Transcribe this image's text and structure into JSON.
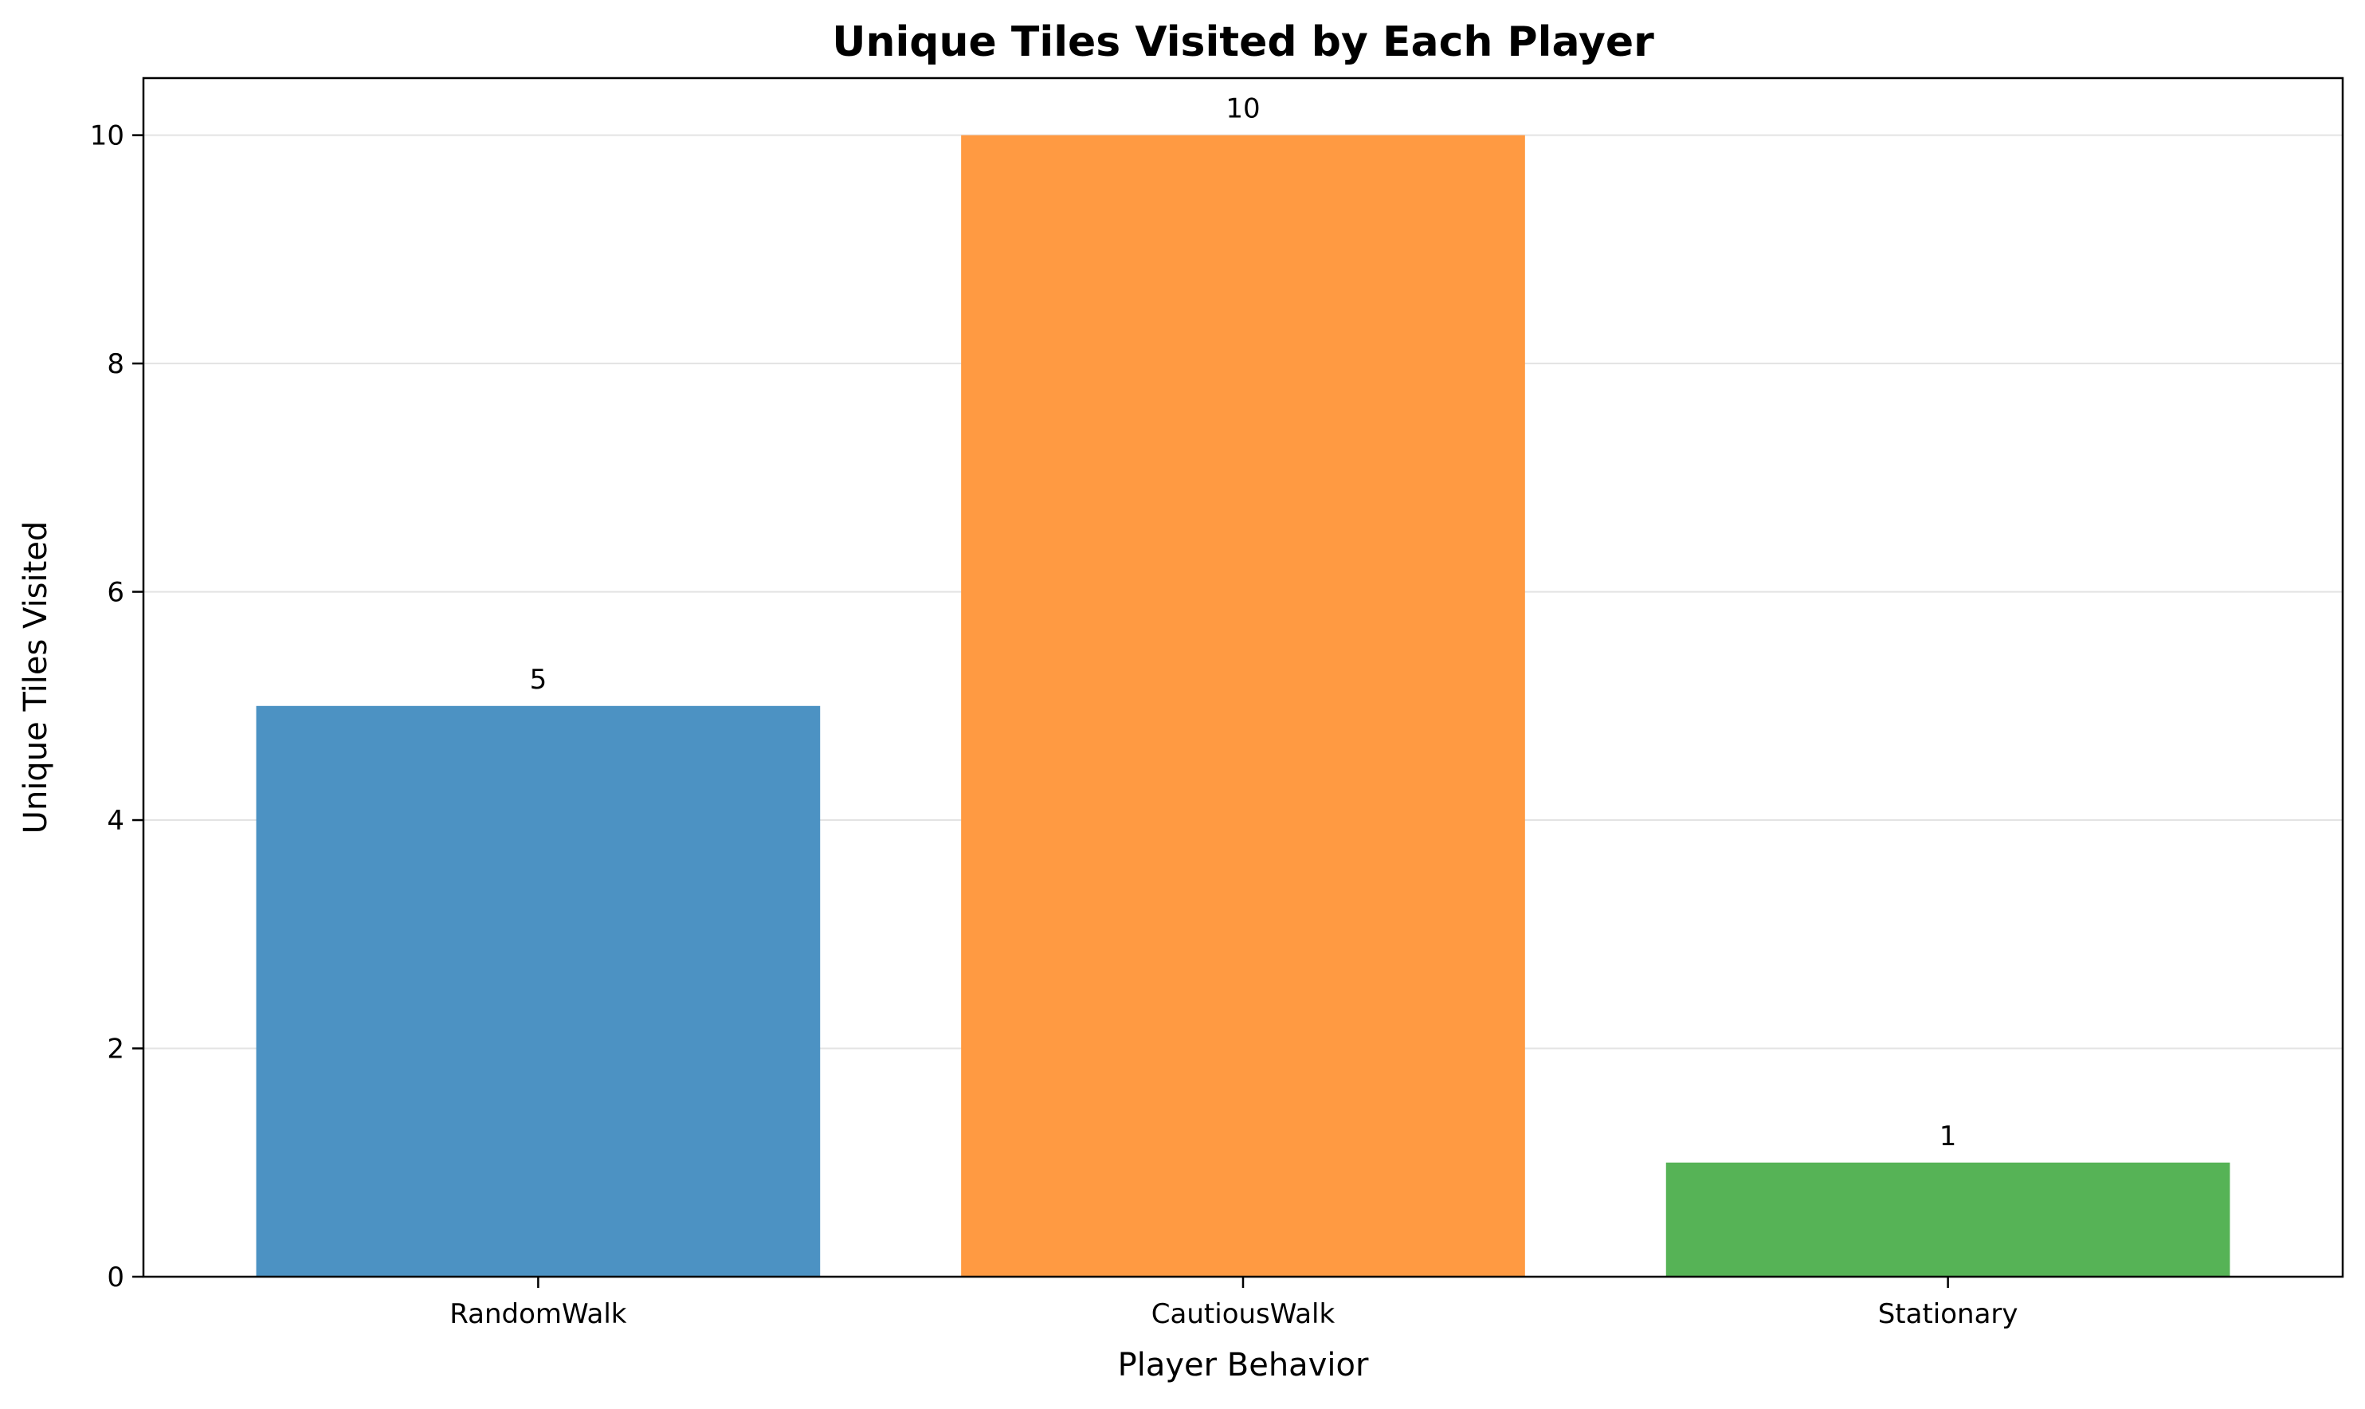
{
  "chart_data": {
    "type": "bar",
    "title": "Unique Tiles Visited by Each Player",
    "xlabel": "Player Behavior",
    "ylabel": "Unique Tiles Visited",
    "categories": [
      "RandomWalk",
      "CautiousWalk",
      "Stationary"
    ],
    "values": [
      5,
      10,
      1
    ],
    "data_labels": [
      "5",
      "10",
      "1"
    ],
    "colors": [
      "#4c92c3",
      "#ff9a42",
      "#56b356"
    ],
    "ylim": [
      0,
      10.5
    ],
    "yticks": [
      0,
      2,
      4,
      6,
      8,
      10
    ],
    "ytick_labels": [
      "0",
      "2",
      "4",
      "6",
      "8",
      "10"
    ],
    "grid": "y-axis, light gray",
    "legend": "none"
  }
}
